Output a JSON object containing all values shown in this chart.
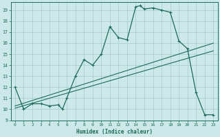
{
  "xlabel": "Humidex (Indice chaleur)",
  "bg_color": "#cde8e8",
  "line_color": "#1a6b5a",
  "grid_color": "#aad0d0",
  "xlim": [
    -0.5,
    23.5
  ],
  "ylim": [
    9,
    19.7
  ],
  "xticks": [
    0,
    1,
    2,
    3,
    4,
    5,
    6,
    7,
    8,
    9,
    10,
    11,
    12,
    13,
    14,
    15,
    16,
    17,
    18,
    19,
    20,
    21,
    22,
    23
  ],
  "yticks": [
    9,
    10,
    11,
    12,
    13,
    14,
    15,
    16,
    17,
    18,
    19
  ],
  "curve1_x": [
    0,
    1,
    2,
    3,
    4,
    5,
    5.5,
    6,
    7,
    8,
    9,
    10,
    11,
    12,
    13,
    14,
    14.5,
    15,
    16,
    17,
    18,
    19,
    20,
    21,
    22,
    23
  ],
  "curve1_y": [
    12,
    10,
    10.5,
    10.5,
    10.3,
    10.4,
    10,
    11,
    13,
    14.5,
    14,
    15,
    17.5,
    16.5,
    16.3,
    19.3,
    19.4,
    19.1,
    19.2,
    19.0,
    18.8,
    16.2,
    15.5,
    11.5,
    9.5,
    9.5
  ],
  "curve2_x": [
    0,
    23
  ],
  "curve2_y": [
    10.3,
    16.0
  ],
  "curve3_x": [
    0,
    23
  ],
  "curve3_y": [
    10.1,
    15.3
  ],
  "trend1_x": [
    0,
    22
  ],
  "trend1_y": [
    10.3,
    16.2
  ],
  "trend2_x": [
    0,
    22
  ],
  "trend2_y": [
    10.1,
    15.4
  ]
}
